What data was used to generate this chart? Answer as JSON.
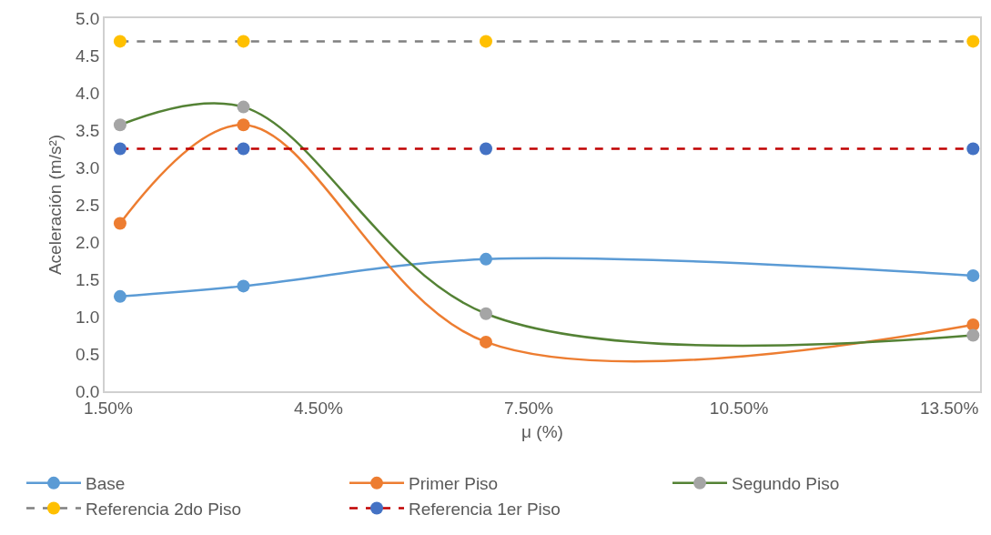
{
  "chart_data": {
    "type": "line",
    "xlabel": "μ (%)",
    "ylabel": "Aceleración (m/s²)",
    "x": [
      1.67,
      3.43,
      6.89,
      13.84
    ],
    "xlim": [
      1.45,
      13.94
    ],
    "xticks": [
      {
        "value": 1.5,
        "label": "1.50%"
      },
      {
        "value": 4.5,
        "label": "4.50%"
      },
      {
        "value": 7.5,
        "label": "7.50%"
      },
      {
        "value": 10.5,
        "label": "10.50%"
      },
      {
        "value": 13.5,
        "label": "13.50%"
      }
    ],
    "ylim": [
      0,
      5
    ],
    "yticks": [
      {
        "value": 0,
        "label": "0.0"
      },
      {
        "value": 0.5,
        "label": "0.5"
      },
      {
        "value": 1,
        "label": "1.0"
      },
      {
        "value": 1.5,
        "label": "1.5"
      },
      {
        "value": 2,
        "label": "2.0"
      },
      {
        "value": 2.5,
        "label": "2.5"
      },
      {
        "value": 3,
        "label": "3.0"
      },
      {
        "value": 3.5,
        "label": "3.5"
      },
      {
        "value": 4,
        "label": "4.0"
      },
      {
        "value": 4.5,
        "label": "4.5"
      },
      {
        "value": 5,
        "label": "5.0"
      }
    ],
    "legend": "bottom",
    "marker": "circle",
    "series": [
      {
        "name": "Base",
        "color": "#5b9bd5",
        "colors": [
          "#5b9bd5",
          "#5b9bd5",
          "#5b9bd5",
          "#5b9bd5"
        ],
        "line_style": "solid",
        "values": [
          1.27,
          1.41,
          1.77,
          1.55
        ]
      },
      {
        "name": "Primer Piso",
        "color": "#ed7d31",
        "colors": [
          "#ed7d31",
          "#ed7d31",
          "#ed7d31",
          "#ed7d31"
        ],
        "line_style": "solid",
        "values": [
          2.25,
          3.57,
          0.66,
          0.89
        ]
      },
      {
        "name": "Segundo Piso",
        "color": "#548235",
        "colors": [
          "#a5a5a5",
          "#a5a5a5",
          "#a5a5a5",
          "#a5a5a5"
        ],
        "line_style": "solid",
        "values": [
          3.57,
          3.81,
          1.04,
          0.75
        ]
      },
      {
        "name": "Referencia 2do Piso",
        "color": "#808080",
        "colors": [
          "#ffc000",
          "#ffc000",
          "#ffc000",
          "#ffc000"
        ],
        "line_style": "dashed",
        "values": [
          4.69,
          4.69,
          4.69,
          4.69
        ]
      },
      {
        "name": "Referencia 1er Piso",
        "color": "#c00000",
        "colors": [
          "#4472c4",
          "#4472c4",
          "#4472c4",
          "#4472c4"
        ],
        "line_style": "dashed",
        "values": [
          3.25,
          3.25,
          3.25,
          3.25
        ]
      }
    ]
  }
}
